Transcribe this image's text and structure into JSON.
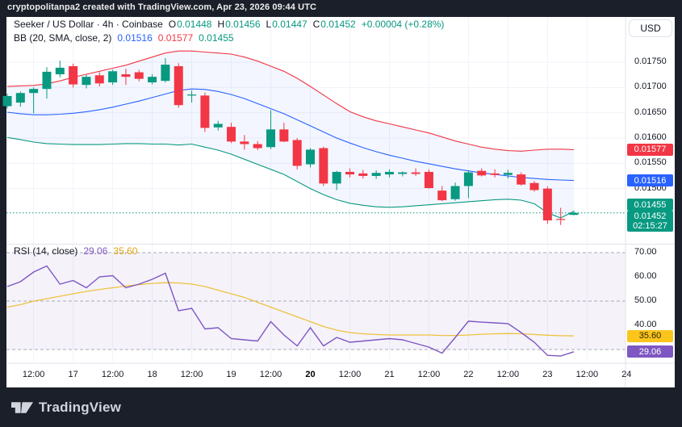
{
  "watermark": "cryptopolitanpa2 created with TradingView.com, Apr 23, 2026 09:44 UTC",
  "legend": {
    "symbol": "Seeker / US Dollar · 4h · Coinbase",
    "o_label": "O",
    "o": "0.01448",
    "h_label": "H",
    "h": "0.01456",
    "l_label": "L",
    "l": "0.01447",
    "c_label": "C",
    "c": "0.01452",
    "change": "+0.00004 (+0.28%)",
    "bb_label": "BB (20, SMA, close, 2)",
    "bb_mid": "0.01516",
    "bb_upper": "0.01577",
    "bb_lower": "0.01455"
  },
  "rsi_legend": {
    "label": "RSI (14, close)",
    "rsi_value": "29.06",
    "ma_value": "35.60"
  },
  "price_axis": {
    "currency": "USD",
    "ticks": [
      {
        "label": "0.01750",
        "price": 0.0175
      },
      {
        "label": "0.01700",
        "price": 0.017
      },
      {
        "label": "0.01650",
        "price": 0.0165
      },
      {
        "label": "0.01600",
        "price": 0.016
      },
      {
        "label": "0.01550",
        "price": 0.0155
      },
      {
        "label": "0.01500",
        "price": 0.015
      }
    ],
    "badges": [
      {
        "label": "0.01577",
        "price": 0.01577,
        "bg": "#f23645",
        "fg": "#ffffff",
        "shift": 0
      },
      {
        "label": "0.01516",
        "price": 0.01516,
        "bg": "#2962ff",
        "fg": "#ffffff",
        "shift": 0
      },
      {
        "label": "0.01455",
        "price": 0.01455,
        "bg": "#089981",
        "fg": "#ffffff",
        "shift": -8
      }
    ],
    "last_price_badge": {
      "price_label": "0.01452",
      "countdown": "02:15:27",
      "price": 0.01452,
      "bg": "#089981",
      "fg": "#ffffff"
    }
  },
  "rsi_axis": {
    "ticks": [
      {
        "label": "70.00",
        "value": 70
      },
      {
        "label": "60.00",
        "value": 60
      },
      {
        "label": "50.00",
        "value": 50
      },
      {
        "label": "40.00",
        "value": 40
      }
    ],
    "badges": [
      {
        "label": "35.60",
        "value": 35.6,
        "bg": "#fbc51c",
        "fg": "#2a2200"
      },
      {
        "label": "29.06",
        "value": 29.06,
        "bg": "#7e57c2",
        "fg": "#ffffff"
      }
    ]
  },
  "time_axis": {
    "labels": [
      {
        "text": "12:00",
        "idx": 2
      },
      {
        "text": "17",
        "idx": 5
      },
      {
        "text": "12:00",
        "idx": 8
      },
      {
        "text": "18",
        "idx": 11
      },
      {
        "text": "12:00",
        "idx": 14
      },
      {
        "text": "19",
        "idx": 17
      },
      {
        "text": "12:00",
        "idx": 20
      },
      {
        "text": "20",
        "idx": 23,
        "bold": true
      },
      {
        "text": "12:00",
        "idx": 26
      },
      {
        "text": "21",
        "idx": 29
      },
      {
        "text": "12:00",
        "idx": 32
      },
      {
        "text": "22",
        "idx": 35
      },
      {
        "text": "12:00",
        "idx": 38
      },
      {
        "text": "23",
        "idx": 41
      },
      {
        "text": "12:00",
        "idx": 44
      },
      {
        "text": "24",
        "idx": 47
      }
    ]
  },
  "footer": {
    "logo_text": "TradingView"
  },
  "colors": {
    "frame_bg": "#1b1f29",
    "pane_bg": "#ffffff",
    "grid": "#f0f3fa",
    "separator": "#e0e3eb",
    "axis_text": "#131722",
    "candle_up": "#089981",
    "candle_down": "#f23645",
    "bb_upper": "#f23645",
    "bb_mid": "#2962ff",
    "bb_lower": "#089981",
    "bb_fill": "rgba(41,98,255,0.055)",
    "rsi_line": "#7e57c2",
    "rsi_ma": "#eec33e",
    "rsi_band_fill": "rgba(126,87,194,0.08)",
    "rsi_dashed": "#a8abb5",
    "last_price_line": "#089981"
  },
  "chart_data": {
    "type": "candlestick",
    "title": "Seeker / US Dollar · 4h · Coinbase",
    "x_axis": "time (4h bars, Apr 16 – Apr 24)",
    "price_range_visible": [
      0.0143,
      0.01772
    ],
    "panes": [
      "price with Bollinger Bands (20, SMA, close, 2)",
      "RSI (14, close) with SMA"
    ],
    "last_close": 0.01452,
    "candles_ohlc": [
      [
        0.01663,
        0.01688,
        0.01658,
        0.01683
      ],
      [
        0.0167,
        0.01692,
        0.01662,
        0.01689
      ],
      [
        0.01689,
        0.017,
        0.01649,
        0.01697
      ],
      [
        0.01697,
        0.0174,
        0.01678,
        0.01731
      ],
      [
        0.01726,
        0.01753,
        0.0172,
        0.01739
      ],
      [
        0.01742,
        0.01747,
        0.017,
        0.01706
      ],
      [
        0.01705,
        0.01725,
        0.01698,
        0.01721
      ],
      [
        0.01724,
        0.0173,
        0.01702,
        0.01708
      ],
      [
        0.0171,
        0.01735,
        0.01705,
        0.01732
      ],
      [
        0.01726,
        0.01737,
        0.01705,
        0.01721
      ],
      [
        0.0173,
        0.01735,
        0.01712,
        0.01717
      ],
      [
        0.0171,
        0.01726,
        0.01706,
        0.01721
      ],
      [
        0.01713,
        0.01758,
        0.0171,
        0.01745
      ],
      [
        0.01742,
        0.01748,
        0.0166,
        0.01665
      ],
      [
        0.01684,
        0.01694,
        0.0167,
        0.01686
      ],
      [
        0.01684,
        0.0169,
        0.01612,
        0.0162
      ],
      [
        0.01621,
        0.01634,
        0.01615,
        0.01628
      ],
      [
        0.01622,
        0.0163,
        0.0159,
        0.01593
      ],
      [
        0.01593,
        0.01606,
        0.01577,
        0.01588
      ],
      [
        0.01588,
        0.01594,
        0.01576,
        0.0158
      ],
      [
        0.01582,
        0.01655,
        0.01578,
        0.01617
      ],
      [
        0.01617,
        0.0163,
        0.01592,
        0.01593
      ],
      [
        0.01596,
        0.016,
        0.01538,
        0.01545
      ],
      [
        0.01548,
        0.0158,
        0.01542,
        0.01577
      ],
      [
        0.0158,
        0.01583,
        0.01505,
        0.0151
      ],
      [
        0.0151,
        0.01535,
        0.01497,
        0.01533
      ],
      [
        0.01533,
        0.0154,
        0.01522,
        0.01528
      ],
      [
        0.0153,
        0.01537,
        0.0152,
        0.01525
      ],
      [
        0.01525,
        0.01536,
        0.01519,
        0.01531
      ],
      [
        0.01528,
        0.01538,
        0.01522,
        0.01533
      ],
      [
        0.01529,
        0.01534,
        0.01524,
        0.01532
      ],
      [
        0.01532,
        0.0154,
        0.01525,
        0.01529
      ],
      [
        0.01533,
        0.01538,
        0.015,
        0.01501
      ],
      [
        0.01496,
        0.01505,
        0.01475,
        0.01477
      ],
      [
        0.01479,
        0.01512,
        0.01476,
        0.01505
      ],
      [
        0.01505,
        0.01536,
        0.01481,
        0.01532
      ],
      [
        0.01535,
        0.0154,
        0.01524,
        0.01526
      ],
      [
        0.0153,
        0.01538,
        0.01522,
        0.01527
      ],
      [
        0.01527,
        0.01537,
        0.0152,
        0.01531
      ],
      [
        0.01528,
        0.01532,
        0.01506,
        0.01508
      ],
      [
        0.01511,
        0.01515,
        0.01494,
        0.01497
      ],
      [
        0.015,
        0.01504,
        0.0143,
        0.01437
      ],
      [
        0.0144,
        0.01462,
        0.01428,
        0.01438
      ],
      [
        0.01448,
        0.01456,
        0.01447,
        0.01452
      ]
    ],
    "bb_upper": [
      0.01702,
      0.01703,
      0.01704,
      0.01707,
      0.01713,
      0.0172,
      0.01726,
      0.01732,
      0.01738,
      0.01744,
      0.01752,
      0.0176,
      0.01768,
      0.01772,
      0.01772,
      0.0177,
      0.01768,
      0.01766,
      0.0176,
      0.01752,
      0.01742,
      0.01732,
      0.01718,
      0.01702,
      0.01685,
      0.01668,
      0.01652,
      0.01642,
      0.01634,
      0.01628,
      0.01622,
      0.01616,
      0.0161,
      0.01602,
      0.01594,
      0.01588,
      0.01582,
      0.01578,
      0.01575,
      0.01574,
      0.01576,
      0.01578,
      0.01578,
      0.01577
    ],
    "bb_mid": [
      0.01651,
      0.01648,
      0.01646,
      0.01646,
      0.01647,
      0.01649,
      0.01652,
      0.01656,
      0.01661,
      0.01667,
      0.01673,
      0.0168,
      0.01687,
      0.01694,
      0.01697,
      0.01696,
      0.01692,
      0.01686,
      0.01678,
      0.01668,
      0.01658,
      0.01648,
      0.01636,
      0.01624,
      0.01612,
      0.016,
      0.0159,
      0.01581,
      0.01573,
      0.01566,
      0.0156,
      0.01554,
      0.01549,
      0.01544,
      0.01539,
      0.01535,
      0.01531,
      0.01528,
      0.01525,
      0.01522,
      0.0152,
      0.01518,
      0.01517,
      0.01516
    ],
    "bb_lower": [
      0.01601,
      0.01597,
      0.01592,
      0.01589,
      0.01588,
      0.01587,
      0.01587,
      0.01587,
      0.01588,
      0.01589,
      0.01589,
      0.01588,
      0.01588,
      0.01586,
      0.01588,
      0.01582,
      0.01576,
      0.01568,
      0.01558,
      0.01548,
      0.01538,
      0.01528,
      0.01514,
      0.015,
      0.01488,
      0.01478,
      0.01471,
      0.01467,
      0.01464,
      0.01463,
      0.01464,
      0.01466,
      0.01468,
      0.0147,
      0.01472,
      0.01474,
      0.01476,
      0.01478,
      0.01479,
      0.01477,
      0.0147,
      0.01452,
      0.01442,
      0.01455
    ],
    "rsi": [
      56,
      58,
      62,
      64.5,
      57,
      58.5,
      55.5,
      60,
      60.5,
      55.5,
      57,
      59,
      61.5,
      46,
      47,
      38.5,
      39,
      34.5,
      34,
      33.5,
      41.5,
      36,
      31.5,
      39,
      31.5,
      35,
      33,
      33.5,
      34,
      34.5,
      34,
      32.5,
      31,
      28.5,
      35,
      41.7,
      41.3,
      41,
      40.7,
      37,
      33,
      27.6,
      27.3,
      29.06
    ],
    "rsi_ma": [
      47.5,
      48.5,
      50,
      51,
      52,
      53,
      54,
      54.8,
      55.5,
      56.2,
      56.8,
      57.3,
      57.6,
      57.5,
      57,
      56,
      54.5,
      53,
      51.5,
      49.5,
      47.5,
      45.5,
      43.5,
      41.5,
      39.5,
      38,
      37,
      36.5,
      36.2,
      36,
      36,
      36,
      36,
      35.8,
      35.8,
      36,
      36.3,
      36.5,
      36.6,
      36.5,
      36.2,
      35.9,
      35.7,
      35.6
    ],
    "rsi_levels_dashed": [
      70,
      50,
      30
    ],
    "rsi_band": [
      30,
      70
    ]
  }
}
